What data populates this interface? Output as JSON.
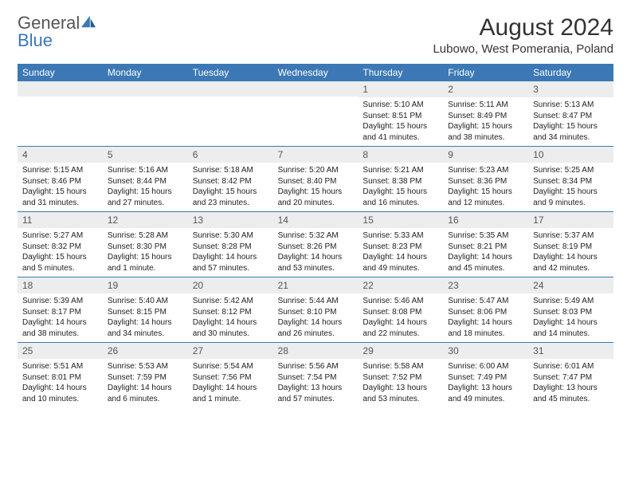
{
  "brand": {
    "part1": "General",
    "part2": "Blue"
  },
  "title": "August 2024",
  "location": "Lubowo, West Pomerania, Poland",
  "colors": {
    "header_bg": "#3b78b5",
    "daynum_bg": "#eceded",
    "rule": "#3b78b5",
    "text": "#333333"
  },
  "weekdays": [
    "Sunday",
    "Monday",
    "Tuesday",
    "Wednesday",
    "Thursday",
    "Friday",
    "Saturday"
  ],
  "weeks": [
    [
      {
        "n": "",
        "sr": "",
        "ss": "",
        "dl": ""
      },
      {
        "n": "",
        "sr": "",
        "ss": "",
        "dl": ""
      },
      {
        "n": "",
        "sr": "",
        "ss": "",
        "dl": ""
      },
      {
        "n": "",
        "sr": "",
        "ss": "",
        "dl": ""
      },
      {
        "n": "1",
        "sr": "Sunrise: 5:10 AM",
        "ss": "Sunset: 8:51 PM",
        "dl": "Daylight: 15 hours and 41 minutes."
      },
      {
        "n": "2",
        "sr": "Sunrise: 5:11 AM",
        "ss": "Sunset: 8:49 PM",
        "dl": "Daylight: 15 hours and 38 minutes."
      },
      {
        "n": "3",
        "sr": "Sunrise: 5:13 AM",
        "ss": "Sunset: 8:47 PM",
        "dl": "Daylight: 15 hours and 34 minutes."
      }
    ],
    [
      {
        "n": "4",
        "sr": "Sunrise: 5:15 AM",
        "ss": "Sunset: 8:46 PM",
        "dl": "Daylight: 15 hours and 31 minutes."
      },
      {
        "n": "5",
        "sr": "Sunrise: 5:16 AM",
        "ss": "Sunset: 8:44 PM",
        "dl": "Daylight: 15 hours and 27 minutes."
      },
      {
        "n": "6",
        "sr": "Sunrise: 5:18 AM",
        "ss": "Sunset: 8:42 PM",
        "dl": "Daylight: 15 hours and 23 minutes."
      },
      {
        "n": "7",
        "sr": "Sunrise: 5:20 AM",
        "ss": "Sunset: 8:40 PM",
        "dl": "Daylight: 15 hours and 20 minutes."
      },
      {
        "n": "8",
        "sr": "Sunrise: 5:21 AM",
        "ss": "Sunset: 8:38 PM",
        "dl": "Daylight: 15 hours and 16 minutes."
      },
      {
        "n": "9",
        "sr": "Sunrise: 5:23 AM",
        "ss": "Sunset: 8:36 PM",
        "dl": "Daylight: 15 hours and 12 minutes."
      },
      {
        "n": "10",
        "sr": "Sunrise: 5:25 AM",
        "ss": "Sunset: 8:34 PM",
        "dl": "Daylight: 15 hours and 9 minutes."
      }
    ],
    [
      {
        "n": "11",
        "sr": "Sunrise: 5:27 AM",
        "ss": "Sunset: 8:32 PM",
        "dl": "Daylight: 15 hours and 5 minutes."
      },
      {
        "n": "12",
        "sr": "Sunrise: 5:28 AM",
        "ss": "Sunset: 8:30 PM",
        "dl": "Daylight: 15 hours and 1 minute."
      },
      {
        "n": "13",
        "sr": "Sunrise: 5:30 AM",
        "ss": "Sunset: 8:28 PM",
        "dl": "Daylight: 14 hours and 57 minutes."
      },
      {
        "n": "14",
        "sr": "Sunrise: 5:32 AM",
        "ss": "Sunset: 8:26 PM",
        "dl": "Daylight: 14 hours and 53 minutes."
      },
      {
        "n": "15",
        "sr": "Sunrise: 5:33 AM",
        "ss": "Sunset: 8:23 PM",
        "dl": "Daylight: 14 hours and 49 minutes."
      },
      {
        "n": "16",
        "sr": "Sunrise: 5:35 AM",
        "ss": "Sunset: 8:21 PM",
        "dl": "Daylight: 14 hours and 45 minutes."
      },
      {
        "n": "17",
        "sr": "Sunrise: 5:37 AM",
        "ss": "Sunset: 8:19 PM",
        "dl": "Daylight: 14 hours and 42 minutes."
      }
    ],
    [
      {
        "n": "18",
        "sr": "Sunrise: 5:39 AM",
        "ss": "Sunset: 8:17 PM",
        "dl": "Daylight: 14 hours and 38 minutes."
      },
      {
        "n": "19",
        "sr": "Sunrise: 5:40 AM",
        "ss": "Sunset: 8:15 PM",
        "dl": "Daylight: 14 hours and 34 minutes."
      },
      {
        "n": "20",
        "sr": "Sunrise: 5:42 AM",
        "ss": "Sunset: 8:12 PM",
        "dl": "Daylight: 14 hours and 30 minutes."
      },
      {
        "n": "21",
        "sr": "Sunrise: 5:44 AM",
        "ss": "Sunset: 8:10 PM",
        "dl": "Daylight: 14 hours and 26 minutes."
      },
      {
        "n": "22",
        "sr": "Sunrise: 5:46 AM",
        "ss": "Sunset: 8:08 PM",
        "dl": "Daylight: 14 hours and 22 minutes."
      },
      {
        "n": "23",
        "sr": "Sunrise: 5:47 AM",
        "ss": "Sunset: 8:06 PM",
        "dl": "Daylight: 14 hours and 18 minutes."
      },
      {
        "n": "24",
        "sr": "Sunrise: 5:49 AM",
        "ss": "Sunset: 8:03 PM",
        "dl": "Daylight: 14 hours and 14 minutes."
      }
    ],
    [
      {
        "n": "25",
        "sr": "Sunrise: 5:51 AM",
        "ss": "Sunset: 8:01 PM",
        "dl": "Daylight: 14 hours and 10 minutes."
      },
      {
        "n": "26",
        "sr": "Sunrise: 5:53 AM",
        "ss": "Sunset: 7:59 PM",
        "dl": "Daylight: 14 hours and 6 minutes."
      },
      {
        "n": "27",
        "sr": "Sunrise: 5:54 AM",
        "ss": "Sunset: 7:56 PM",
        "dl": "Daylight: 14 hours and 1 minute."
      },
      {
        "n": "28",
        "sr": "Sunrise: 5:56 AM",
        "ss": "Sunset: 7:54 PM",
        "dl": "Daylight: 13 hours and 57 minutes."
      },
      {
        "n": "29",
        "sr": "Sunrise: 5:58 AM",
        "ss": "Sunset: 7:52 PM",
        "dl": "Daylight: 13 hours and 53 minutes."
      },
      {
        "n": "30",
        "sr": "Sunrise: 6:00 AM",
        "ss": "Sunset: 7:49 PM",
        "dl": "Daylight: 13 hours and 49 minutes."
      },
      {
        "n": "31",
        "sr": "Sunrise: 6:01 AM",
        "ss": "Sunset: 7:47 PM",
        "dl": "Daylight: 13 hours and 45 minutes."
      }
    ]
  ]
}
